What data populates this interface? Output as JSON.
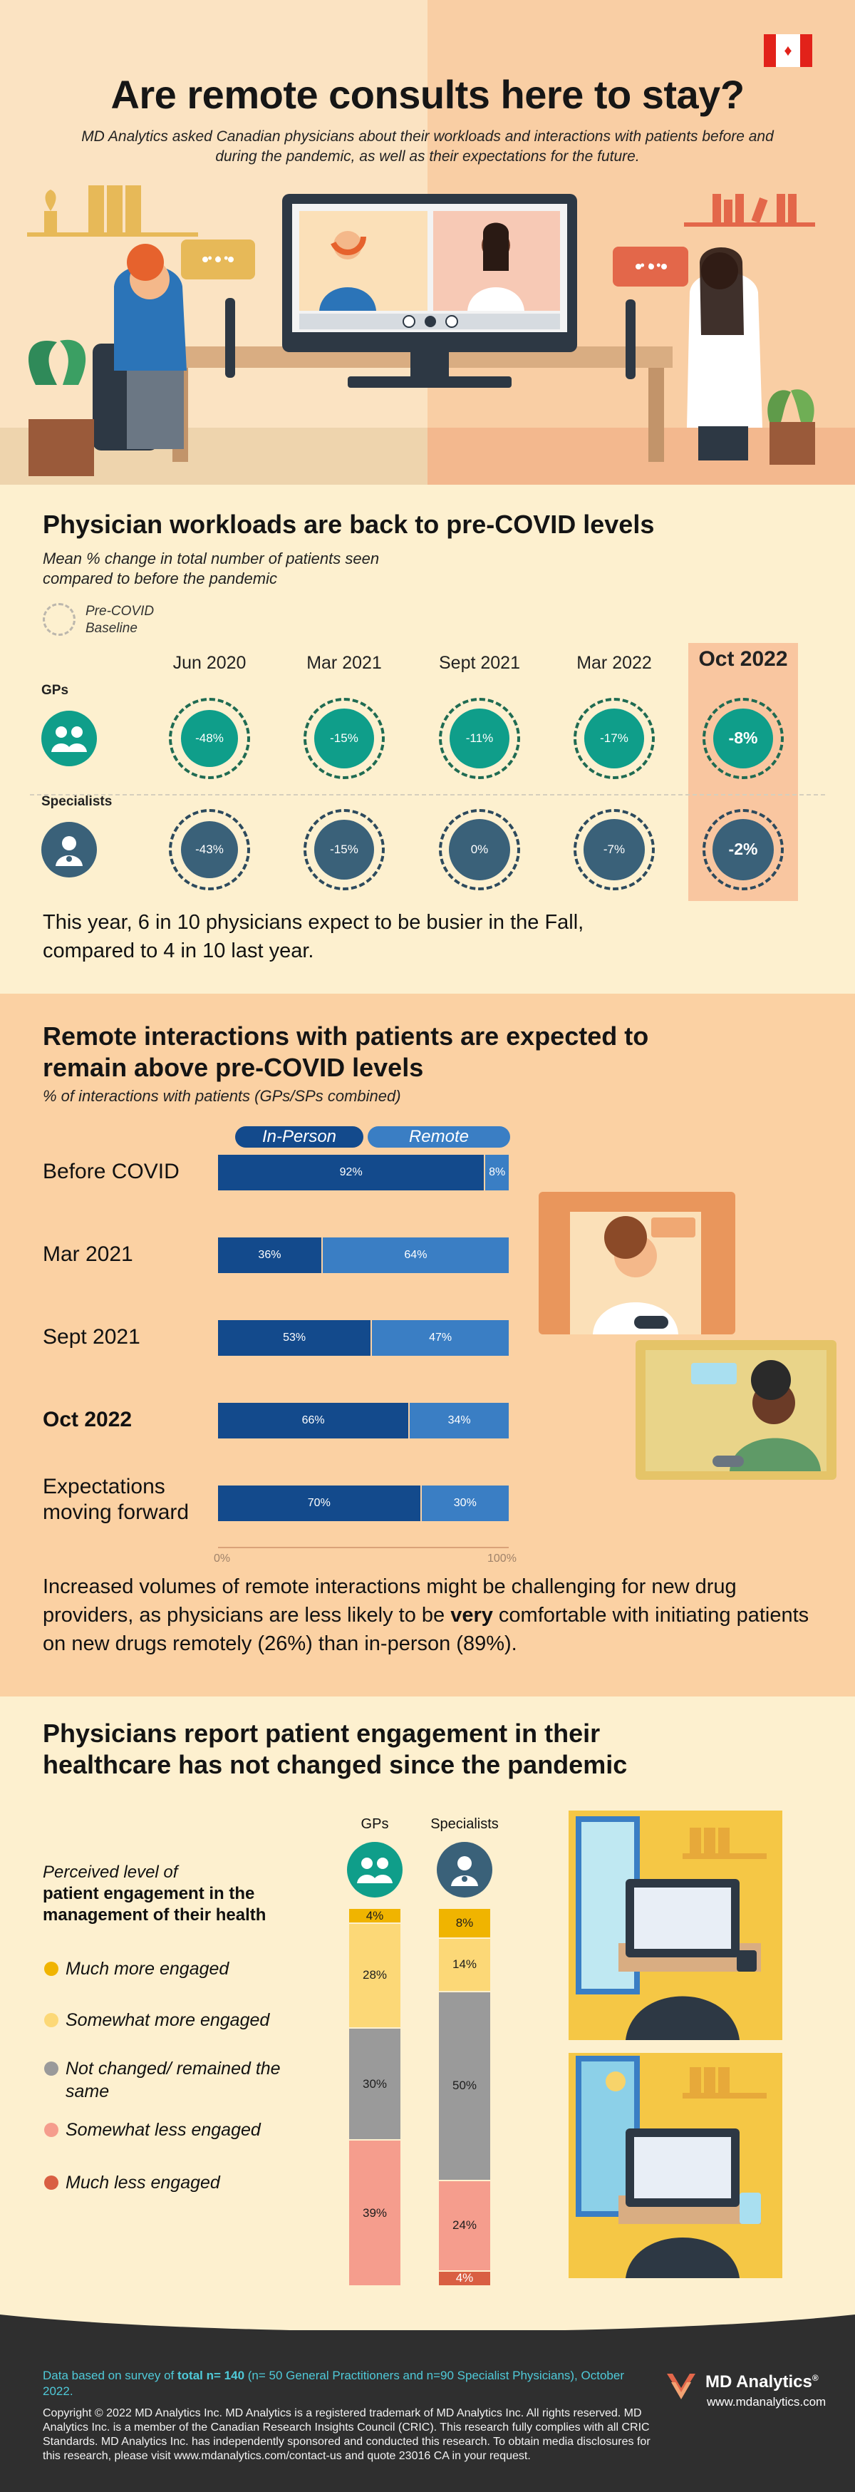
{
  "hero": {
    "title": "Are remote consults here to stay?",
    "subtitle": "MD Analytics asked Canadian physicians about their workloads and interactions with patients before and during the pandemic, as well as their expectations for the future.",
    "chat_dots": "• • •"
  },
  "workloads": {
    "title": "Physician workloads are  back to pre-COVID levels",
    "subtitle": "Mean % change in total number of patients seen compared to before the pandemic",
    "legend": "Pre-COVID Baseline",
    "footnote": "This year, 6 in 10 physicians expect to be busier in the Fall, compared to 4 in 10 last year."
  },
  "remote": {
    "title": "Remote interactions with patients are expected to remain above pre-COVID levels",
    "subtitle": "% of interactions with patients (GPs/SPs combined)",
    "footnote_a": "Increased volumes of remote interactions might be challenging for new drug providers, as physicians are less likely to be ",
    "footnote_b": "very",
    "footnote_c": " comfortable with initiating patients on new drugs remotely (26%) than in-person (89%)."
  },
  "engagement": {
    "title": "Physicians report patient engagement in their healthcare has not changed since the pandemic",
    "question_a": "Perceived level of",
    "question_b": "patient engagement in the management of their health"
  },
  "footer": {
    "note_a": "Data based on survey of ",
    "note_b": "total n= 140",
    "note_c": " (n= 50 General Practitioners and n=90 Specialist Physicians), October 2022.",
    "copyright": "Copyright © 2022 MD Analytics Inc. MD Analytics is a registered trademark of MD Analytics Inc. All rights reserved. MD Analytics Inc. is a member of the Canadian Research Insights Council (CRIC). This research fully complies with all CRIC Standards. MD Analytics Inc. has independently sponsored and conducted this research. To obtain media disclosures for this research, please visit www.mdanalytics.com/contact-us and quote 23016 CA in your request.",
    "brand": "MD Analytics",
    "brand_mark": "®",
    "url": "www.mdanalytics.com"
  },
  "colors": {
    "gp_teal": "#0f9e8a",
    "sp_slate": "#3a6179",
    "in_person": "#134a8c",
    "remote": "#3a7ec4",
    "much_more": "#f0b400",
    "somewhat_more": "#fcd877",
    "unchanged": "#9a9a9a",
    "somewhat_less": "#f59d8d",
    "much_less": "#d95f43"
  },
  "chart_data": [
    {
      "type": "bubble",
      "periods": [
        "Jun 2020",
        "Mar 2021",
        "Sept 2021",
        "Mar 2022",
        "Oct 2022"
      ],
      "highlight": "Oct 2022",
      "series": [
        {
          "name": "GPs",
          "values": [
            -48,
            -15,
            -11,
            -17,
            -8
          ],
          "labels": [
            "-48%",
            "-15%",
            "-11%",
            "-17%",
            "-8%"
          ]
        },
        {
          "name": "Specialists",
          "values": [
            -43,
            -15,
            0,
            -7,
            -2
          ],
          "labels": [
            "-43%",
            "-15%",
            "0%",
            "-7%",
            "-2%"
          ]
        }
      ]
    },
    {
      "type": "bar",
      "stacked": true,
      "orientation": "horizontal",
      "categories": [
        "Before COVID",
        "Mar 2021",
        "Sept 2021",
        "Oct 2022",
        "Expectations moving forward"
      ],
      "bold_categories": [
        "Oct 2022"
      ],
      "series": [
        {
          "name": "In-Person",
          "values": [
            92,
            36,
            53,
            66,
            70
          ]
        },
        {
          "name": "Remote",
          "values": [
            8,
            64,
            47,
            34,
            30
          ]
        }
      ],
      "xlim": [
        0,
        100
      ],
      "tick_labels": [
        "0%",
        "100%"
      ]
    },
    {
      "type": "bar",
      "stacked": true,
      "orientation": "vertical",
      "categories": [
        "GPs",
        "Specialists"
      ],
      "series": [
        {
          "name": "Much more engaged",
          "values": [
            4,
            8
          ]
        },
        {
          "name": "Somewhat more engaged",
          "values": [
            28,
            14
          ]
        },
        {
          "name": "Not changed/ remained the same",
          "values": [
            30,
            50
          ]
        },
        {
          "name": "Somewhat less engaged",
          "values": [
            39,
            24
          ]
        },
        {
          "name": "Much less engaged",
          "values": [
            0,
            4
          ]
        }
      ]
    }
  ]
}
